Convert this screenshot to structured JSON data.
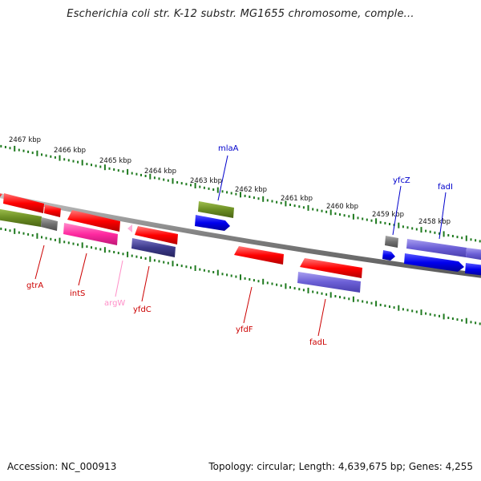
{
  "title": "Escherichia coli str. K-12 substr. MG1655 chromosome, comple...",
  "footer": {
    "accession": "Accession: NC_000913",
    "stats": "Topology: circular; Length: 4,639,675 bp; Genes: 4,255"
  },
  "colors": {
    "tick": "#1f7a1f",
    "backbone": "#8a8a8a",
    "red": "#ff1a1a",
    "olive": "#6b8e23",
    "gray": "#7a7a7a",
    "pink": "#ff3fa8",
    "light_pink": "#ff9ad5",
    "navy": "#3d3a8c",
    "blue": "#0000ee",
    "slate": "#6b5fd6"
  },
  "kbp_labels": [
    "2467 kbp",
    "2466 kbp",
    "2465 kbp",
    "2464 kbp",
    "2463 kbp",
    "2462 kbp",
    "2461 kbp",
    "2460 kbp",
    "2459 kbp",
    "2458 kbp"
  ],
  "gene_labels": [
    {
      "name": "mlaA",
      "color": "#0000cc"
    },
    {
      "name": "yfcZ",
      "color": "#0000cc"
    },
    {
      "name": "fadI",
      "color": "#0000cc"
    },
    {
      "name": "gtrA",
      "color": "#cc0000"
    },
    {
      "name": "intS",
      "color": "#cc0000"
    },
    {
      "name": "argW",
      "color": "#ff8fc8"
    },
    {
      "name": "yfdC",
      "color": "#cc0000"
    },
    {
      "name": "yfdF",
      "color": "#cc0000"
    },
    {
      "name": "fadL",
      "color": "#cc0000"
    }
  ]
}
